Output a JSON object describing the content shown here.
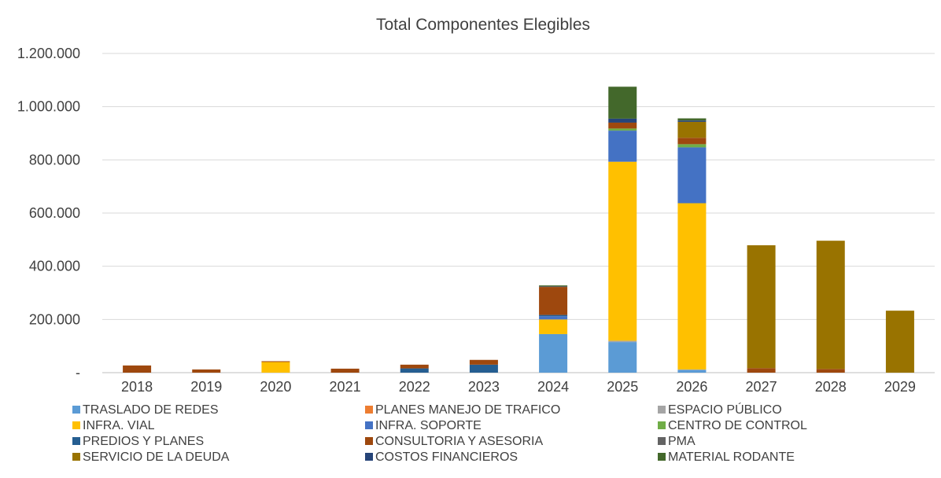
{
  "chart_data": {
    "type": "bar",
    "stacked": true,
    "title": "Total Componentes Elegibles",
    "xlabel": "",
    "ylabel": "",
    "ylim": [
      0,
      1200000
    ],
    "yticks": [
      0,
      200000,
      400000,
      600000,
      800000,
      1000000,
      1200000
    ],
    "ytick_labels": [
      "-",
      "200.000",
      "400.000",
      "600.000",
      "800.000",
      "1.000.000",
      "1.200.000"
    ],
    "grid": true,
    "legend_position": "bottom",
    "categories": [
      "2018",
      "2019",
      "2020",
      "2021",
      "2022",
      "2023",
      "2024",
      "2025",
      "2026",
      "2027",
      "2028",
      "2029"
    ],
    "series": [
      {
        "name": "TRASLADO DE REDES",
        "color": "#5B9BD5",
        "values": [
          0,
          0,
          0,
          0,
          0,
          0,
          145000,
          115000,
          10000,
          0,
          0,
          0
        ]
      },
      {
        "name": "PLANES MANEJO DE TRAFICO",
        "color": "#ED7D31",
        "values": [
          0,
          0,
          0,
          0,
          0,
          0,
          0,
          0,
          0,
          0,
          0,
          0
        ]
      },
      {
        "name": "ESPACIO PÚBLICO",
        "color": "#A5A5A5",
        "values": [
          0,
          0,
          0,
          0,
          0,
          0,
          0,
          5000,
          2000,
          0,
          0,
          0
        ]
      },
      {
        "name": "INFRA. VIAL",
        "color": "#FFC000",
        "values": [
          0,
          0,
          40000,
          0,
          0,
          0,
          55000,
          673000,
          625000,
          0,
          0,
          0
        ]
      },
      {
        "name": "INFRA. SOPORTE",
        "color": "#4472C4",
        "values": [
          0,
          0,
          0,
          0,
          0,
          0,
          12000,
          117000,
          210000,
          0,
          0,
          0
        ]
      },
      {
        "name": "CENTRO DE CONTROL",
        "color": "#70AD47",
        "values": [
          0,
          0,
          0,
          0,
          0,
          0,
          0,
          8000,
          12000,
          0,
          0,
          0
        ]
      },
      {
        "name": "PREDIOS Y PLANES",
        "color": "#255E91",
        "values": [
          0,
          0,
          0,
          0,
          16000,
          30000,
          5000,
          0,
          0,
          0,
          0,
          0
        ]
      },
      {
        "name": "CONSULTORIA Y ASESORIA",
        "color": "#9E480E",
        "values": [
          27000,
          12000,
          3000,
          15000,
          14000,
          18000,
          105000,
          22000,
          24000,
          17000,
          14000,
          0
        ]
      },
      {
        "name": "PMA",
        "color": "#636363",
        "values": [
          0,
          0,
          0,
          0,
          0,
          0,
          3000,
          0,
          0,
          0,
          0,
          0
        ]
      },
      {
        "name": "SERVICIO DE LA DEUDA",
        "color": "#997300",
        "values": [
          0,
          0,
          0,
          0,
          0,
          0,
          0,
          0,
          60000,
          462000,
          482000,
          233000
        ]
      },
      {
        "name": "COSTOS FINANCIEROS",
        "color": "#264478",
        "values": [
          0,
          0,
          0,
          0,
          0,
          0,
          0,
          15000,
          5000,
          0,
          0,
          0
        ]
      },
      {
        "name": "MATERIAL RODANTE",
        "color": "#43682B",
        "values": [
          0,
          0,
          0,
          0,
          0,
          0,
          3000,
          120000,
          8000,
          0,
          0,
          0
        ]
      }
    ]
  }
}
